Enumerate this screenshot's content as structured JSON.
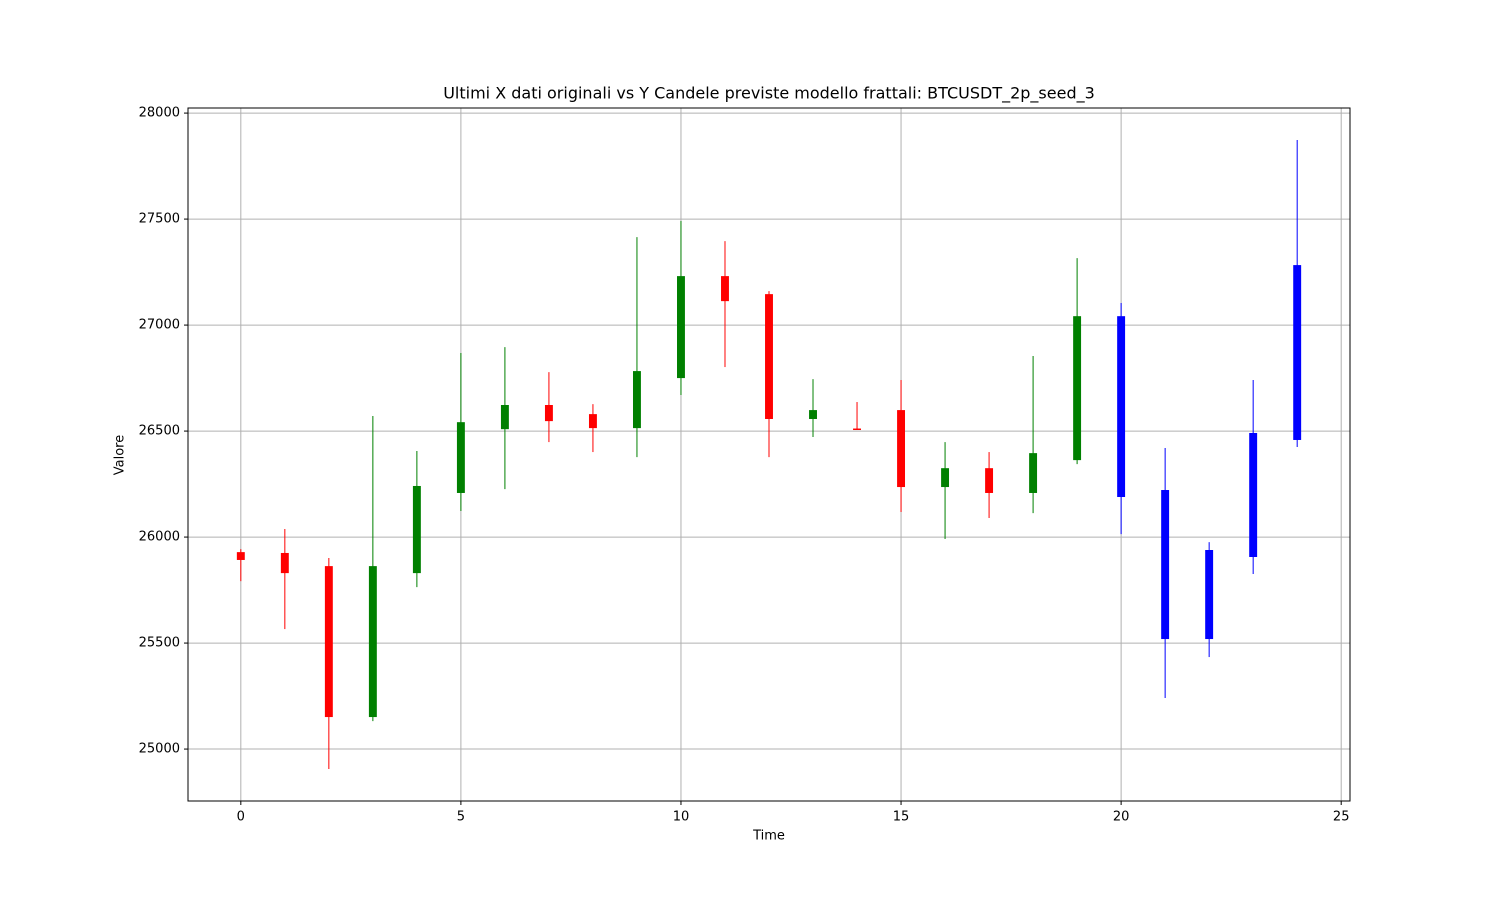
{
  "chart_data": {
    "type": "candlestick",
    "title": "Ultimi X dati originali vs Y Candele previste modello frattali: BTCUSDT_2p_seed_3",
    "x_label": "Time",
    "y_label": "Valore",
    "x": [
      0,
      1,
      2,
      3,
      4,
      5,
      6,
      7,
      8,
      9,
      10,
      11,
      12,
      13,
      14,
      15,
      16,
      17,
      18,
      19,
      20,
      21,
      22,
      23,
      24
    ],
    "open": [
      25929,
      25925,
      25863,
      25151,
      25830,
      26208,
      26509,
      26623,
      26580,
      26514,
      26750,
      27231,
      27146,
      26557,
      26512,
      26599,
      26236,
      26325,
      26208,
      26363,
      27042,
      26222,
      25519,
      25906,
      26458
    ],
    "high": [
      25943,
      26038,
      25901,
      26571,
      26406,
      26868,
      26896,
      26778,
      26627,
      27415,
      27491,
      27396,
      27160,
      26745,
      26637,
      26741,
      26448,
      26401,
      26854,
      27316,
      27104,
      26420,
      25976,
      26741,
      27873
    ],
    "low": [
      25792,
      25566,
      24906,
      25132,
      25764,
      26123,
      26226,
      26448,
      26401,
      26377,
      26670,
      26802,
      26377,
      26472,
      26505,
      26118,
      25991,
      26090,
      26113,
      26344,
      26014,
      25241,
      25434,
      25826,
      26425
    ],
    "close": [
      25892,
      25830,
      25151,
      25863,
      26241,
      26542,
      26623,
      26547,
      26514,
      26783,
      27231,
      27113,
      26557,
      26599,
      26505,
      26236,
      26325,
      26208,
      26396,
      27042,
      26189,
      25519,
      25939,
      26491,
      27283
    ],
    "colors": [
      "red",
      "red",
      "red",
      "green",
      "green",
      "green",
      "green",
      "red",
      "red",
      "green",
      "green",
      "red",
      "red",
      "green",
      "red",
      "red",
      "green",
      "red",
      "green",
      "green",
      "blue",
      "blue",
      "blue",
      "blue",
      "blue"
    ],
    "xlim": [
      -1.2,
      25.2
    ],
    "ylim": [
      24755,
      28024
    ],
    "xticks": [
      0,
      5,
      10,
      15,
      20,
      25
    ],
    "yticks": [
      25000,
      25500,
      26000,
      26500,
      27000,
      27500,
      28000
    ],
    "grid": true
  }
}
